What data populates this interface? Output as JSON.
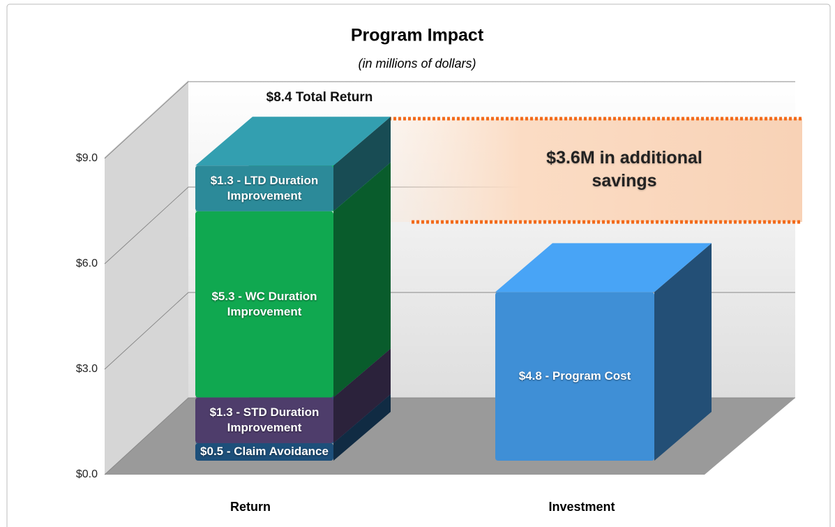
{
  "chart_data": {
    "type": "bar",
    "title": "Program Impact",
    "subtitle": "(in millions of dollars)",
    "categories": [
      "Return",
      "Investment"
    ],
    "series": [
      {
        "color": "#1d4f7a",
        "values": [
          0.5,
          null
        ],
        "value_labels": [
          "$0.5 - Claim Avoidance",
          null
        ]
      },
      {
        "color": "#4e3d6b",
        "values": [
          1.3,
          null
        ],
        "value_labels": [
          "$1.3 - STD Duration Improvement",
          null
        ]
      },
      {
        "color": "#10a850",
        "values": [
          5.3,
          null
        ],
        "value_labels": [
          "$5.3 - WC Duration Improvement",
          null
        ]
      },
      {
        "color": "#2c8a99",
        "values": [
          1.3,
          null
        ],
        "value_labels": [
          "$1.3 - LTD Duration Improvement",
          null
        ]
      },
      {
        "color": "#3f8fd6",
        "values": [
          null,
          4.8
        ],
        "value_labels": [
          null,
          "$4.8 - Program Cost"
        ]
      }
    ],
    "stacked": true,
    "ylim": [
      0,
      9
    ],
    "yticks": [
      {
        "value": 0,
        "label": "$0.0"
      },
      {
        "value": 3,
        "label": "$3.0"
      },
      {
        "value": 6,
        "label": "$6.0"
      },
      {
        "value": 9,
        "label": "$9.0"
      }
    ],
    "grid": true,
    "annotations": [
      "$8.4 Total Return",
      "$3.6M in additional savings"
    ]
  }
}
